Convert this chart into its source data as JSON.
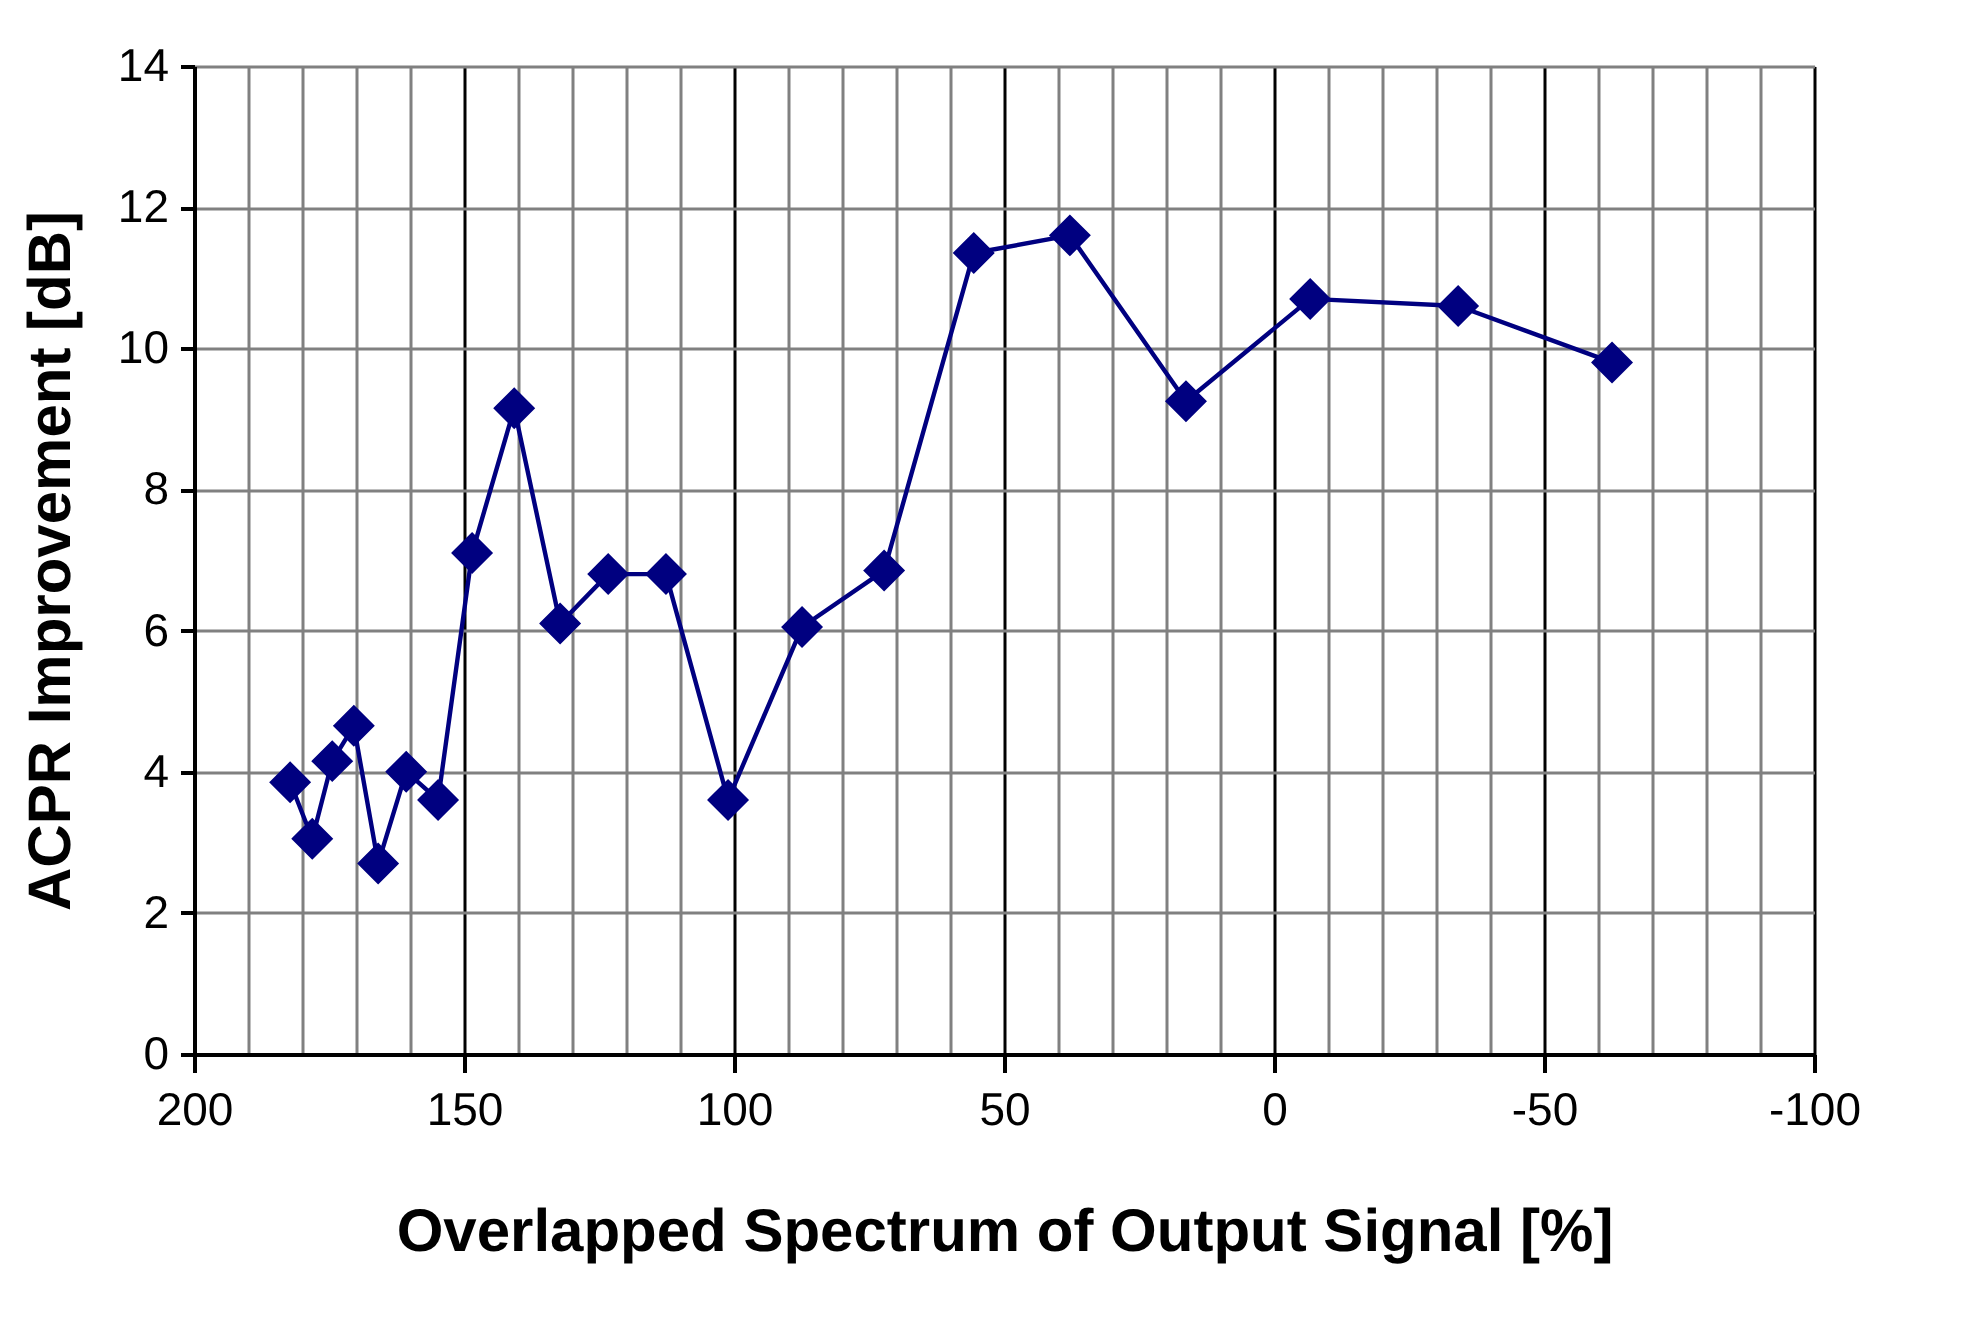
{
  "chart_data": {
    "type": "line",
    "xlabel": "Overlapped Spectrum of Output Signal [%]",
    "ylabel": "ACPR Improvement [dB]",
    "x": [
      182.2,
      178.1,
      174.4,
      170.4,
      165.9,
      160.7,
      154.8,
      148.5,
      140.7,
      132.2,
      123.3,
      112.6,
      101.1,
      87.4,
      72.2,
      55.6,
      37.8,
      16.3,
      -6.7,
      -34.1,
      -62.6
    ],
    "series": [
      {
        "color": "#000080",
        "values": [
          3.85,
          3.05,
          4.15,
          4.65,
          2.7,
          4.0,
          3.6,
          7.1,
          9.15,
          6.1,
          6.8,
          6.8,
          3.6,
          6.05,
          6.85,
          11.35,
          11.6,
          9.25,
          10.7,
          10.6,
          9.8
        ]
      }
    ],
    "xlim": [
      200,
      -100
    ],
    "xticks": [
      200,
      {
        "value": 190,
        "label": null
      },
      {
        "value": 180,
        "label": null
      },
      {
        "value": 170,
        "label": null
      },
      {
        "value": 160,
        "label": null
      },
      150,
      {
        "value": 140,
        "label": null
      },
      {
        "value": 130,
        "label": null
      },
      {
        "value": 120,
        "label": null
      },
      {
        "value": 110,
        "label": null
      },
      100,
      {
        "value": 90,
        "label": null
      },
      {
        "value": 80,
        "label": null
      },
      {
        "value": 70,
        "label": null
      },
      {
        "value": 60,
        "label": null
      },
      50,
      {
        "value": 40,
        "label": null
      },
      {
        "value": 30,
        "label": null
      },
      {
        "value": 20,
        "label": null
      },
      {
        "value": 10,
        "label": null
      },
      0,
      {
        "value": -10,
        "label": null
      },
      {
        "value": -20,
        "label": null
      },
      {
        "value": -30,
        "label": null
      },
      {
        "value": -40,
        "label": null
      },
      -50,
      {
        "value": -60,
        "label": null
      },
      {
        "value": -70,
        "label": null
      },
      {
        "value": -80,
        "label": null
      },
      {
        "value": -90,
        "label": null
      },
      -100
    ],
    "ylim": [
      0,
      14
    ],
    "yticks": [
      0,
      2,
      4,
      6,
      8,
      10,
      12,
      14
    ],
    "grid": true,
    "marker": "diamond",
    "line_style": "solid"
  }
}
